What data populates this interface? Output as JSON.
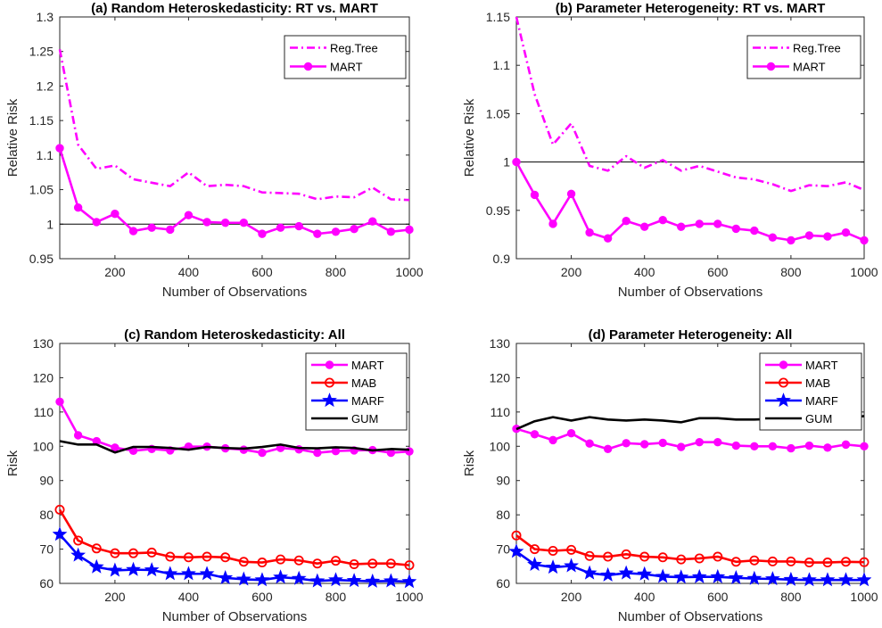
{
  "chart_data": [
    {
      "type": "line",
      "title": "(a) Random Heteroskedasticity: RT vs. MART",
      "xlabel": "Number of Observations",
      "ylabel": "Relative Risk",
      "xlim": [
        50,
        1000
      ],
      "ylim": [
        0.95,
        1.3
      ],
      "xticks": [
        "200",
        "400",
        "600",
        "800",
        "1000"
      ],
      "yticks": [
        "0.95",
        "1",
        "1.05",
        "1.1",
        "1.15",
        "1.2",
        "1.25",
        "1.3"
      ],
      "reference_line": 1,
      "legend_position": "top-right",
      "x": [
        50,
        100,
        150,
        200,
        250,
        300,
        350,
        400,
        450,
        500,
        550,
        600,
        650,
        700,
        750,
        800,
        850,
        900,
        950,
        1000
      ],
      "series": [
        {
          "name": "Reg.Tree",
          "color": "#ff00ff",
          "style": "dashdot",
          "marker": "none",
          "values": [
            1.253,
            1.115,
            1.08,
            1.085,
            1.065,
            1.06,
            1.055,
            1.075,
            1.055,
            1.057,
            1.055,
            1.046,
            1.045,
            1.044,
            1.036,
            1.04,
            1.039,
            1.053,
            1.036,
            1.035
          ]
        },
        {
          "name": "MART",
          "color": "#ff00ff",
          "style": "solid",
          "marker": "circle-filled",
          "values": [
            1.11,
            1.024,
            1.003,
            1.015,
            0.99,
            0.995,
            0.992,
            1.013,
            1.003,
            1.002,
            1.002,
            0.986,
            0.995,
            0.997,
            0.986,
            0.989,
            0.993,
            1.004,
            0.989,
            0.992
          ]
        }
      ]
    },
    {
      "type": "line",
      "title": "(b) Parameter Heterogeneity: RT vs. MART",
      "xlabel": "Number of Observations",
      "ylabel": "Relative Risk",
      "xlim": [
        50,
        1000
      ],
      "ylim": [
        0.9,
        1.15
      ],
      "xticks": [
        "200",
        "400",
        "600",
        "800",
        "1000"
      ],
      "yticks": [
        "0.9",
        "0.95",
        "1",
        "1.05",
        "1.1",
        "1.15"
      ],
      "reference_line": 1,
      "legend_position": "top-right",
      "x": [
        50,
        100,
        150,
        200,
        250,
        300,
        350,
        400,
        450,
        500,
        550,
        600,
        650,
        700,
        750,
        800,
        850,
        900,
        950,
        1000
      ],
      "series": [
        {
          "name": "Reg.Tree",
          "color": "#ff00ff",
          "style": "dashdot",
          "marker": "none",
          "values": [
            1.15,
            1.07,
            1.018,
            1.04,
            0.996,
            0.991,
            1.006,
            0.994,
            1.002,
            0.991,
            0.996,
            0.99,
            0.984,
            0.982,
            0.977,
            0.97,
            0.976,
            0.975,
            0.979,
            0.971
          ]
        },
        {
          "name": "MART",
          "color": "#ff00ff",
          "style": "solid",
          "marker": "circle-filled",
          "values": [
            1.0,
            0.966,
            0.936,
            0.967,
            0.927,
            0.921,
            0.939,
            0.933,
            0.94,
            0.933,
            0.936,
            0.936,
            0.931,
            0.929,
            0.922,
            0.919,
            0.924,
            0.923,
            0.927,
            0.919
          ]
        }
      ]
    },
    {
      "type": "line",
      "title": "(c) Random Heteroskedasticity: All",
      "xlabel": "Number of Observations",
      "ylabel": "Risk",
      "xlim": [
        50,
        1000
      ],
      "ylim": [
        60,
        130
      ],
      "xticks": [
        "200",
        "400",
        "600",
        "800",
        "1000"
      ],
      "yticks": [
        "60",
        "70",
        "80",
        "90",
        "100",
        "110",
        "120",
        "130"
      ],
      "legend_position": "top-right",
      "x": [
        50,
        100,
        150,
        200,
        250,
        300,
        350,
        400,
        450,
        500,
        550,
        600,
        650,
        700,
        750,
        800,
        850,
        900,
        950,
        1000
      ],
      "series": [
        {
          "name": "MART",
          "color": "#ff00ff",
          "style": "solid",
          "marker": "circle-filled",
          "values": [
            113,
            103.2,
            101.5,
            99.6,
            98.7,
            99.2,
            98.8,
            99.9,
            99.9,
            99.4,
            99,
            98.1,
            99.5,
            99.1,
            98.1,
            98.6,
            98.8,
            98.9,
            98.1,
            98.5
          ]
        },
        {
          "name": "MAB",
          "color": "#ff0000",
          "style": "solid",
          "marker": "circle-open",
          "values": [
            81.5,
            72.5,
            70.2,
            68.8,
            68.8,
            69,
            67.8,
            67.6,
            67.8,
            67.6,
            66.3,
            66.1,
            67,
            66.7,
            65.8,
            66.6,
            65.6,
            65.8,
            65.8,
            65.3
          ]
        },
        {
          "name": "MARF",
          "color": "#0000ff",
          "style": "solid",
          "marker": "star",
          "values": [
            74.3,
            68.2,
            64.8,
            63.8,
            64,
            63.9,
            62.8,
            62.8,
            62.8,
            61.6,
            61.2,
            61,
            61.8,
            61.4,
            60.7,
            61,
            60.8,
            60.6,
            60.7,
            60.5
          ]
        },
        {
          "name": "GUM",
          "color": "#000000",
          "style": "solid",
          "marker": "none",
          "values": [
            101.5,
            100.5,
            100.5,
            98.2,
            99.8,
            99.8,
            99.5,
            99,
            99.8,
            99.5,
            99.3,
            99.8,
            100.5,
            99.5,
            99.4,
            99.7,
            99.5,
            98.8,
            99.2,
            99
          ]
        }
      ]
    },
    {
      "type": "line",
      "title": "(d) Parameter Heterogeneity: All",
      "xlabel": "Number of Observations",
      "ylabel": "Risk",
      "xlim": [
        50,
        1000
      ],
      "ylim": [
        60,
        130
      ],
      "xticks": [
        "200",
        "400",
        "600",
        "800",
        "1000"
      ],
      "yticks": [
        "60",
        "70",
        "80",
        "90",
        "100",
        "110",
        "120",
        "130"
      ],
      "legend_position": "top-right",
      "x": [
        50,
        100,
        150,
        200,
        250,
        300,
        350,
        400,
        450,
        500,
        550,
        600,
        650,
        700,
        750,
        800,
        850,
        900,
        950,
        1000
      ],
      "series": [
        {
          "name": "MART",
          "color": "#ff00ff",
          "style": "solid",
          "marker": "circle-filled",
          "values": [
            105.1,
            103.5,
            101.8,
            103.8,
            100.8,
            99.2,
            100.9,
            100.6,
            101,
            99.8,
            101.2,
            101.2,
            100.2,
            100,
            100,
            99.4,
            100.2,
            99.6,
            100.5,
            100
          ]
        },
        {
          "name": "MAB",
          "color": "#ff0000",
          "style": "solid",
          "marker": "circle-open",
          "values": [
            74,
            70,
            69.5,
            69.8,
            68,
            67.8,
            68.5,
            67.8,
            67.6,
            67,
            67.3,
            67.8,
            66.3,
            66.7,
            66.4,
            66.4,
            66.1,
            66.1,
            66.3,
            66.2
          ]
        },
        {
          "name": "MARF",
          "color": "#0000ff",
          "style": "solid",
          "marker": "star",
          "values": [
            69.3,
            65.5,
            64.7,
            65.1,
            63,
            62.4,
            63,
            62.7,
            62,
            61.8,
            61.9,
            61.9,
            61.6,
            61.4,
            61.3,
            61.1,
            61,
            61,
            61,
            61
          ]
        },
        {
          "name": "GUM",
          "color": "#000000",
          "style": "solid",
          "marker": "none",
          "values": [
            105,
            107.3,
            108.5,
            107.5,
            108.5,
            107.8,
            107.5,
            107.8,
            107.5,
            107,
            108.2,
            108.2,
            107.8,
            107.8,
            108,
            108,
            108.2,
            108,
            108.2,
            108.8
          ]
        }
      ]
    }
  ]
}
